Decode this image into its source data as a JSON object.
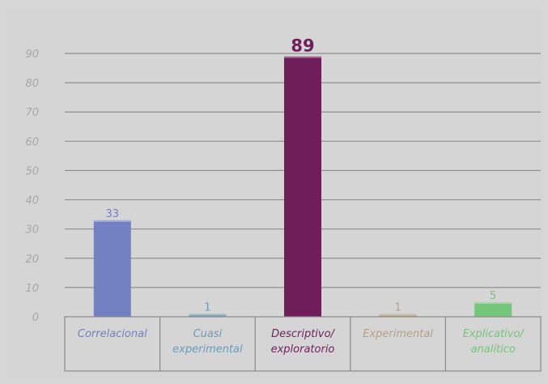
{
  "chart_data": {
    "type": "bar",
    "categories": [
      "Correlacional",
      "Cuasi experimental",
      "Descriptivo/ exploratorio",
      "Experimental",
      "Explicativo/ analítico"
    ],
    "category_lines": [
      [
        "Correlacional"
      ],
      [
        "Cuasi",
        "experimental"
      ],
      [
        "Descriptivo/",
        "exploratorio"
      ],
      [
        "Experimental"
      ],
      [
        "Explicativo/",
        "analítico"
      ]
    ],
    "values": [
      33,
      1,
      89,
      1,
      5
    ],
    "value_labels": [
      "33",
      "1",
      "89",
      "1",
      "5"
    ],
    "colors": [
      "#7381c3",
      "#6a9db8",
      "#701e5a",
      "#b99f80",
      "#74c678"
    ],
    "label_colors": [
      "#7381c3",
      "#6a9db8",
      "#701e5a",
      "#b99f80",
      "#74c678"
    ],
    "y_ticks": [
      0,
      10,
      20,
      30,
      40,
      50,
      60,
      70,
      80,
      90
    ],
    "ylim": [
      0,
      90
    ],
    "grid": true,
    "title": "",
    "xlabel": "",
    "ylabel": ""
  }
}
